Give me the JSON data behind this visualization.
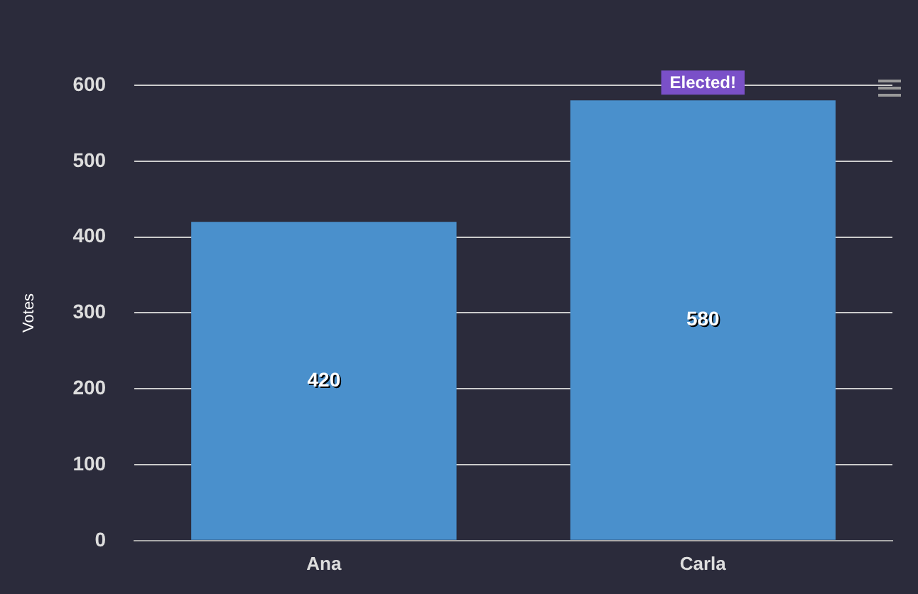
{
  "chart_data": {
    "type": "bar",
    "ylabel": "Votes",
    "categories": [
      "Ana",
      "Carla"
    ],
    "values": [
      420,
      580
    ],
    "color": "#4a90cc",
    "ylim": [
      0,
      600
    ],
    "yticks": [
      0,
      100,
      200,
      300,
      400,
      500,
      600
    ],
    "grid": "y",
    "legend": false,
    "data_labels": true,
    "annotations": [
      {
        "text": "Elected!",
        "x": "Carla",
        "y": 580
      }
    ]
  }
}
